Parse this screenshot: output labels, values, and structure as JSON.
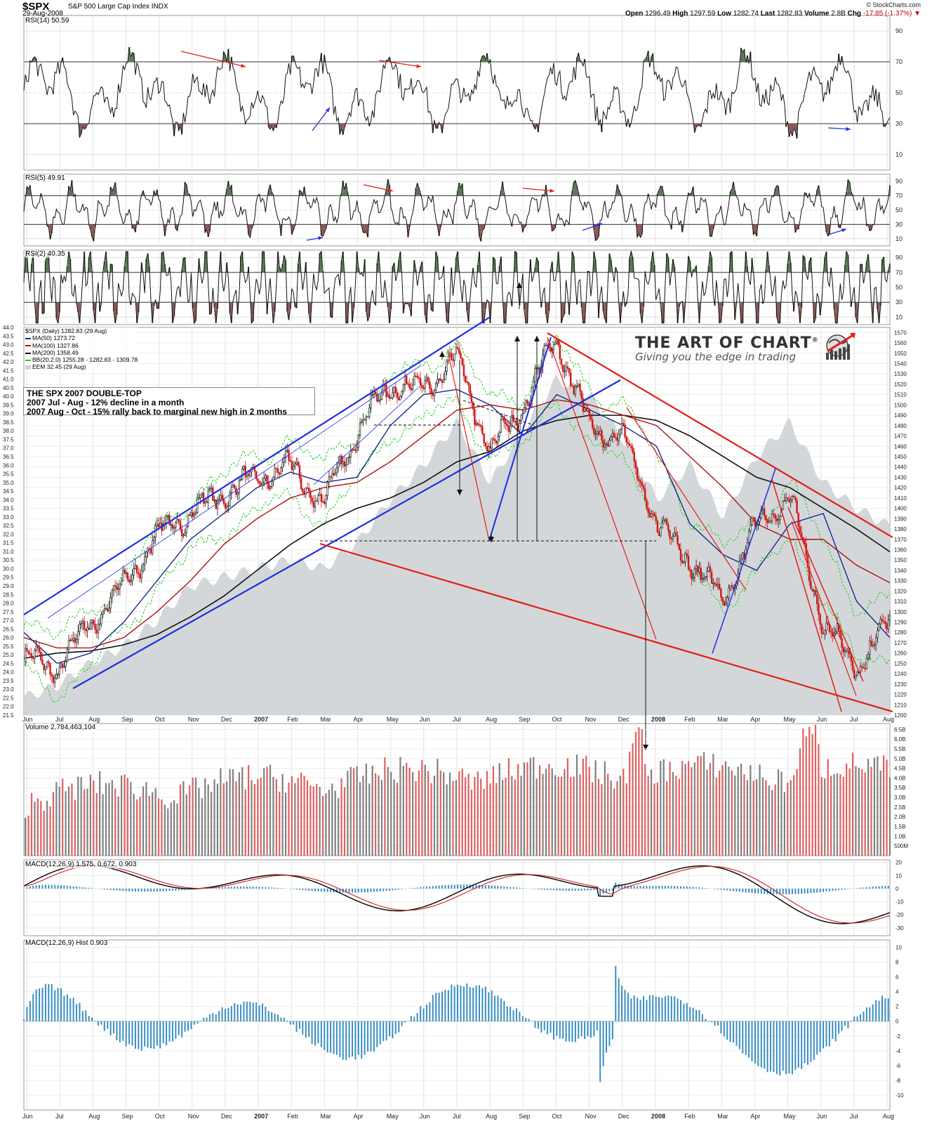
{
  "header": {
    "ticker": "$SPX",
    "description": "S&P 500 Large Cap Index INDX",
    "date": "29-Aug-2008",
    "copyright": "© StockCharts.com",
    "open_label": "Open",
    "open": "1296.49",
    "high_label": "High",
    "high": "1297.59",
    "low_label": "Low",
    "low": "1282.74",
    "last_label": "Last",
    "last": "1282.83",
    "volume_label": "Volume",
    "volume": "2.8B",
    "chg_label": "Chg",
    "chg": "-17.85 (-1.37%)"
  },
  "annotation": {
    "line1": "THE SPX 2007 DOUBLE-TOP",
    "line2": "2007 Jul - Aug - 12% decline in a month",
    "line3": "2007 Aug - Oct - 15% rally back to marginal new high in 2 months"
  },
  "logo": {
    "title": "THE ART OF CHART",
    "mark": "®",
    "tagline": "Giving you the edge in trading"
  },
  "panels": {
    "rsi14": {
      "label": "RSI(14) 50.59",
      "ticks": [
        "90",
        "70",
        "50",
        "30",
        "10"
      ]
    },
    "rsi5": {
      "label": "RSI(5) 49.91",
      "ticks": [
        "90",
        "70",
        "50",
        "30",
        "10"
      ]
    },
    "rsi2": {
      "label": "RSI(2) 40.35",
      "ticks": [
        "90",
        "70",
        "50",
        "30",
        "10"
      ]
    },
    "price": {
      "label": "$SPX (Daily) 1282.83 (29 Aug)",
      "ma50": "MA(50) 1273.72",
      "ma100": "MA(100) 1327.86",
      "ma200": "MA(200) 1358.49",
      "bb": "BB(20,2.0) 1255.28 - 1282.83 - 1309.78",
      "eem": "EEM 32.45 (29 Aug)",
      "right_ticks": [
        "1570",
        "1560",
        "1550",
        "1540",
        "1530",
        "1520",
        "1510",
        "1500",
        "1490",
        "1480",
        "1470",
        "1460",
        "1450",
        "1440",
        "1430",
        "1420",
        "1410",
        "1400",
        "1390",
        "1380",
        "1370",
        "1360",
        "1350",
        "1340",
        "1330",
        "1320",
        "1310",
        "1300",
        "1290",
        "1280",
        "1270",
        "1260",
        "1250",
        "1240",
        "1230",
        "1220",
        "1210",
        "1200"
      ],
      "left_ticks": [
        "44.0",
        "43.5",
        "43.0",
        "42.5",
        "42.0",
        "41.5",
        "41.0",
        "40.5",
        "40.0",
        "39.5",
        "39.0",
        "38.5",
        "38.0",
        "37.5",
        "37.0",
        "36.5",
        "36.0",
        "35.5",
        "35.0",
        "34.5",
        "34.0",
        "33.5",
        "33.0",
        "32.5",
        "32.0",
        "31.5",
        "31.0",
        "30.5",
        "30.0",
        "29.5",
        "29.0",
        "28.5",
        "28.0",
        "27.5",
        "27.0",
        "26.5",
        "26.0",
        "25.5",
        "25.0",
        "24.5",
        "24.0",
        "23.5",
        "23.0",
        "22.5",
        "22.0",
        "21.5"
      ]
    },
    "volume": {
      "label": "Volume 2,784,463,104",
      "ticks": [
        "6.5B",
        "6.0B",
        "5.5B",
        "5.0B",
        "4.5B",
        "4.0B",
        "3.5B",
        "3.0B",
        "2.5B",
        "2.0B",
        "1.5B",
        "1.0B",
        "500M"
      ]
    },
    "macd": {
      "label": "MACD(12,26,9) 1.575, 0.672, 0.903",
      "ticks": [
        "20",
        "10",
        "0",
        "-10",
        "-20",
        "-30"
      ]
    },
    "macd_hist": {
      "label": "MACD(12,26,9) Hist 0.903",
      "ticks": [
        "10",
        "8",
        "6",
        "4",
        "2",
        "0",
        "-2",
        "-4",
        "-6",
        "-8",
        "-10"
      ]
    }
  },
  "x_axis": [
    "Jun",
    "Jul",
    "Aug",
    "Sep",
    "Oct",
    "Nov",
    "Dec",
    "2007",
    "Feb",
    "Mar",
    "Apr",
    "May",
    "Jun",
    "Jul",
    "Aug",
    "Sep",
    "Oct",
    "Nov",
    "Dec",
    "2008",
    "Feb",
    "Mar",
    "Apr",
    "May",
    "Jun",
    "Jul",
    "Aug"
  ],
  "colors": {
    "rsi_overbought": "#5a7a55",
    "rsi_oversold": "#8b5a5a",
    "trend_blue": "#1f2ee0",
    "trend_red": "#e0201a",
    "ma50": "#1a2a8c",
    "ma100": "#b01010",
    "ma200": "#111111",
    "bb": "#22cc22",
    "eem_area": "#cfd3d6",
    "vol_up": "#808080",
    "vol_down": "#e06060",
    "macd_line": "#000000",
    "macd_signal": "#d02020",
    "macd_hist": "#3a8fbf"
  },
  "chart_data": {
    "type": "line",
    "title": "$SPX (Daily)",
    "x": [
      "2006-06",
      "2006-07",
      "2006-08",
      "2006-09",
      "2006-10",
      "2006-11",
      "2006-12",
      "2007-01",
      "2007-02",
      "2007-03",
      "2007-04",
      "2007-05",
      "2007-06",
      "2007-07",
      "2007-08",
      "2007-09",
      "2007-10",
      "2007-11",
      "2007-12",
      "2008-01",
      "2008-02",
      "2008-03",
      "2008-04",
      "2008-05",
      "2008-06",
      "2008-07",
      "2008-08"
    ],
    "series": [
      {
        "name": "$SPX",
        "values": [
          1255,
          1245,
          1290,
          1325,
          1375,
          1395,
          1415,
          1430,
          1440,
          1405,
          1475,
          1520,
          1515,
          1545,
          1455,
          1500,
          1565,
          1475,
          1470,
          1385,
          1350,
          1310,
          1385,
          1410,
          1290,
          1245,
          1290
        ]
      },
      {
        "name": "MA(50)",
        "values": [
          1280,
          1250,
          1260,
          1290,
          1330,
          1370,
          1395,
          1420,
          1435,
          1425,
          1430,
          1480,
          1510,
          1515,
          1500,
          1470,
          1510,
          1495,
          1480,
          1460,
          1385,
          1355,
          1340,
          1385,
          1395,
          1310,
          1275
        ]
      },
      {
        "name": "MA(100)",
        "values": [
          1275,
          1265,
          1265,
          1275,
          1300,
          1330,
          1365,
          1390,
          1410,
          1420,
          1425,
          1445,
          1470,
          1495,
          1500,
          1495,
          1505,
          1500,
          1490,
          1480,
          1450,
          1420,
          1385,
          1370,
          1370,
          1345,
          1328
        ]
      },
      {
        "name": "MA(200)",
        "values": [
          1255,
          1260,
          1262,
          1268,
          1278,
          1295,
          1315,
          1340,
          1365,
          1385,
          1400,
          1410,
          1425,
          1445,
          1455,
          1475,
          1485,
          1490,
          1490,
          1485,
          1470,
          1450,
          1430,
          1420,
          1400,
          1380,
          1358
        ]
      },
      {
        "name": "EEM",
        "values": [
          22.5,
          23.2,
          24.5,
          25.5,
          27.0,
          29.0,
          29.5,
          30.0,
          30.5,
          30.0,
          31.5,
          34.0,
          36.0,
          38.5,
          35.0,
          38.0,
          41.0,
          40.0,
          37.5,
          34.0,
          36.0,
          33.0,
          36.5,
          38.5,
          35.0,
          33.5,
          32.45
        ]
      }
    ],
    "ylabel": "",
    "ylim": [
      1200,
      1575
    ],
    "y2lim": [
      21.5,
      44.0
    ],
    "grid": true
  }
}
